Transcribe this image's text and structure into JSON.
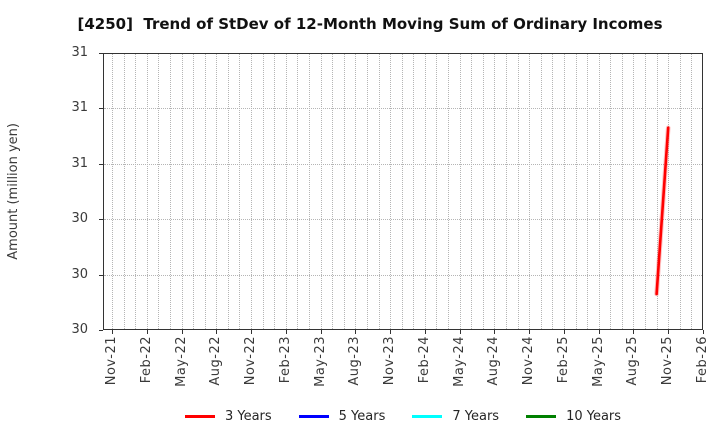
{
  "chart_data": {
    "type": "line",
    "title": "[4250]  Trend of StDev of 12-Month Moving Sum of Ordinary Incomes",
    "ylabel": "Amount (million yen)",
    "ylim": [
      30,
      31
    ],
    "months_total": 51,
    "grid": {
      "vertical": "monthly dotted",
      "horizontal": "0.2-step dotted"
    },
    "legend_position": "bottom-center",
    "y_ticks": [
      {
        "value": 31.0,
        "label": "31"
      },
      {
        "value": 30.8,
        "label": "31"
      },
      {
        "value": 30.6,
        "label": "31"
      },
      {
        "value": 30.4,
        "label": "30"
      },
      {
        "value": 30.2,
        "label": "30"
      },
      {
        "value": 30.0,
        "label": "30"
      }
    ],
    "x_ticks": [
      {
        "month": 0,
        "label": "Nov-21"
      },
      {
        "month": 3,
        "label": "Feb-22"
      },
      {
        "month": 6,
        "label": "May-22"
      },
      {
        "month": 9,
        "label": "Aug-22"
      },
      {
        "month": 12,
        "label": "Nov-22"
      },
      {
        "month": 15,
        "label": "Feb-23"
      },
      {
        "month": 18,
        "label": "May-23"
      },
      {
        "month": 21,
        "label": "Aug-23"
      },
      {
        "month": 24,
        "label": "Nov-23"
      },
      {
        "month": 27,
        "label": "Feb-24"
      },
      {
        "month": 30,
        "label": "May-24"
      },
      {
        "month": 33,
        "label": "Aug-24"
      },
      {
        "month": 36,
        "label": "Nov-24"
      },
      {
        "month": 39,
        "label": "Feb-25"
      },
      {
        "month": 42,
        "label": "May-25"
      },
      {
        "month": 45,
        "label": "Aug-25"
      },
      {
        "month": 48,
        "label": "Nov-25"
      },
      {
        "month": 51,
        "label": "Feb-26"
      }
    ],
    "series": [
      {
        "name": "3 Years",
        "color": "#ff0000",
        "points": [
          {
            "month": 47,
            "x_label": "Oct-25",
            "value": 30.13
          },
          {
            "month": 48,
            "x_label": "Nov-25",
            "value": 30.73
          }
        ]
      },
      {
        "name": "5 Years",
        "color": "#0000ff",
        "points": []
      },
      {
        "name": "7 Years",
        "color": "#00ffff",
        "points": []
      },
      {
        "name": "10 Years",
        "color": "#008000",
        "points": []
      }
    ],
    "colors": {
      "grid": "#b5b5b5",
      "axis_border": "#333333",
      "tick_text": "#3a3a3a",
      "title_text": "#111111",
      "background": "#ffffff"
    }
  }
}
